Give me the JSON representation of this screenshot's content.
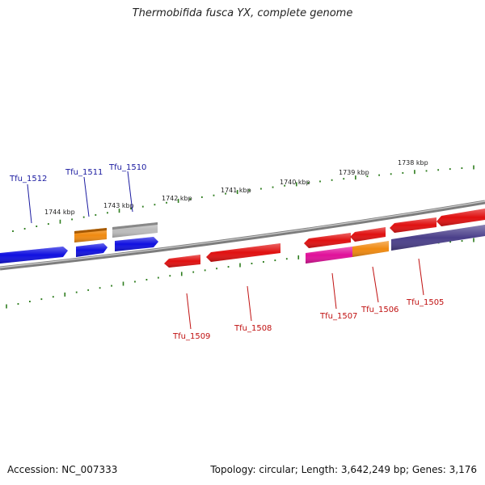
{
  "title": "Thermobifida fusca YX, complete genome",
  "footer": {
    "accession": "Accession: NC_007333",
    "summary": "Topology: circular; Length: 3,642,249 bp; Genes: 3,176"
  },
  "colors": {
    "backbone": "#8a8a8a",
    "tick": "#2e7d1e",
    "forward_label": "#1a1aa0",
    "reverse_label": "#c01010"
  },
  "scale_labels": [
    "1744 kbp",
    "1743 kbp",
    "1742 kbp",
    "1741 kbp",
    "1740 kbp",
    "1739 kbp",
    "1738 kbp"
  ],
  "genes": [
    {
      "label": "Tfu_1512",
      "strand": "forward",
      "color": "#1010e0"
    },
    {
      "label": "Tfu_1511",
      "strand": "forward",
      "color": "#1010e0"
    },
    {
      "label": "Tfu_1510",
      "strand": "forward",
      "color": "#1010e0"
    },
    {
      "label": "",
      "strand": "forward",
      "color": "#f08a10"
    },
    {
      "label": "",
      "strand": "forward",
      "color": "#b8b8b8"
    },
    {
      "label": "Tfu_1509",
      "strand": "reverse",
      "color": "#e01010"
    },
    {
      "label": "Tfu_1508",
      "strand": "reverse",
      "color": "#e01010"
    },
    {
      "label": "Tfu_1507",
      "strand": "reverse",
      "color": "#e0109a"
    },
    {
      "label": "Tfu_1506",
      "strand": "reverse",
      "color": "#f08a10"
    },
    {
      "label": "Tfu_1505",
      "strand": "reverse",
      "color": "#4a3f8a"
    },
    {
      "label": "",
      "strand": "forward",
      "color": "#e01010"
    }
  ]
}
